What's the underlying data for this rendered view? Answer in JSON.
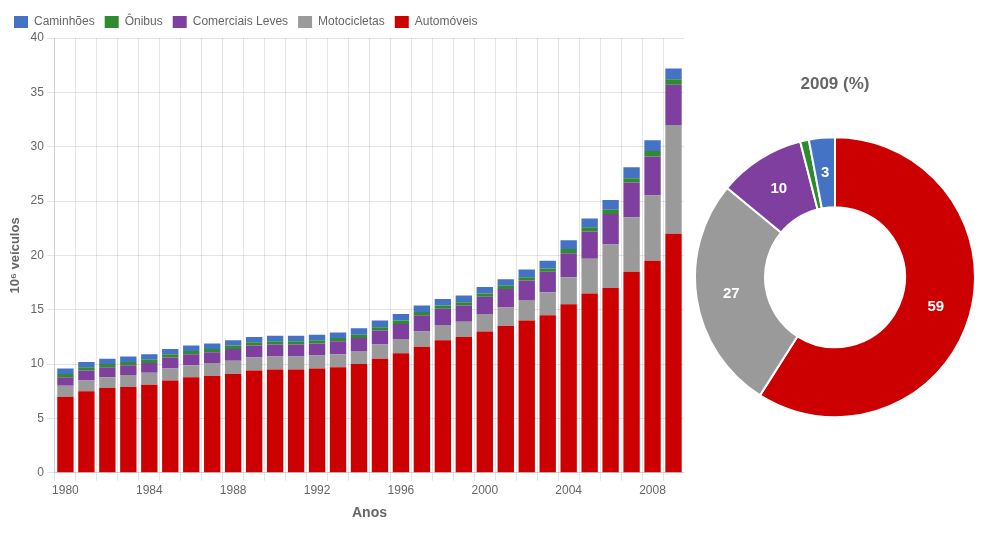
{
  "chart_data": [
    {
      "type": "bar",
      "xlabel": "Anos",
      "ylabel": "10⁶ veículos",
      "categories": [
        "1980",
        null,
        null,
        null,
        "1984",
        null,
        null,
        null,
        "1988",
        null,
        null,
        null,
        "1992",
        null,
        null,
        null,
        "1996",
        null,
        null,
        null,
        "2000",
        null,
        null,
        null,
        "2004",
        null,
        null,
        null,
        "2008",
        null
      ],
      "series": [
        {
          "name": "Automóveis",
          "color": "#cc0000",
          "values": [
            7.0,
            7.5,
            7.8,
            7.9,
            8.1,
            8.5,
            8.8,
            8.9,
            9.1,
            9.4,
            9.5,
            9.5,
            9.6,
            9.7,
            10.0,
            10.5,
            11.0,
            11.6,
            12.2,
            12.5,
            13.0,
            13.5,
            14.0,
            14.5,
            15.5,
            16.5,
            17.0,
            18.5,
            19.5,
            22.0
          ]
        },
        {
          "name": "Motocicletas",
          "color": "#9a9a9a",
          "values": [
            1.0,
            1.0,
            1.0,
            1.1,
            1.1,
            1.1,
            1.1,
            1.2,
            1.2,
            1.2,
            1.2,
            1.2,
            1.2,
            1.2,
            1.2,
            1.3,
            1.3,
            1.4,
            1.4,
            1.4,
            1.6,
            1.7,
            1.9,
            2.1,
            2.5,
            3.2,
            4.0,
            5.0,
            6.0,
            10.0
          ]
        },
        {
          "name": "Comerciais Leves",
          "color": "#7f3f9f",
          "values": [
            0.8,
            0.9,
            0.9,
            0.9,
            0.9,
            1.0,
            1.0,
            1.0,
            1.1,
            1.1,
            1.1,
            1.1,
            1.1,
            1.2,
            1.2,
            1.3,
            1.4,
            1.5,
            1.5,
            1.5,
            1.6,
            1.7,
            1.8,
            1.9,
            2.2,
            2.5,
            2.8,
            3.2,
            3.6,
            3.7
          ]
        },
        {
          "name": "Ônibus",
          "color": "#2e8b2e",
          "values": [
            0.3,
            0.3,
            0.3,
            0.3,
            0.3,
            0.3,
            0.3,
            0.3,
            0.3,
            0.3,
            0.3,
            0.3,
            0.3,
            0.3,
            0.3,
            0.3,
            0.3,
            0.3,
            0.3,
            0.3,
            0.3,
            0.3,
            0.3,
            0.3,
            0.4,
            0.4,
            0.4,
            0.4,
            0.5,
            0.5
          ]
        },
        {
          "name": "Caminhões",
          "color": "#4472c4",
          "values": [
            0.5,
            0.5,
            0.5,
            0.5,
            0.5,
            0.5,
            0.5,
            0.5,
            0.5,
            0.5,
            0.5,
            0.5,
            0.5,
            0.5,
            0.6,
            0.6,
            0.6,
            0.6,
            0.6,
            0.6,
            0.6,
            0.6,
            0.7,
            0.7,
            0.8,
            0.8,
            0.9,
            1.0,
            1.0,
            1.0
          ]
        }
      ],
      "ylim": [
        0,
        40
      ],
      "yticks": [
        0,
        5,
        10,
        15,
        20,
        25,
        30,
        35,
        40
      ],
      "stacked": true,
      "grid": true,
      "legend": "upper left"
    },
    {
      "type": "doughnut",
      "title": "2009 (%)",
      "values": [
        59,
        27,
        10,
        1,
        3
      ],
      "colors": [
        "#cc0000",
        "#9a9a9a",
        "#7f3f9f",
        "#2e8b2e",
        "#4472c4"
      ],
      "data_labels": true,
      "value_labels": [
        "59",
        "27",
        "10",
        null,
        "3"
      ]
    }
  ]
}
